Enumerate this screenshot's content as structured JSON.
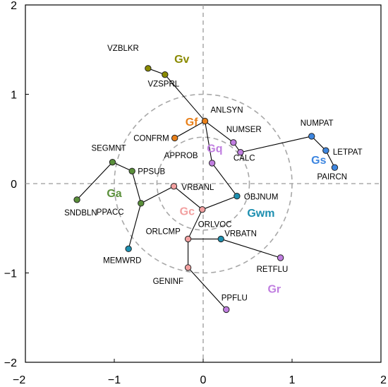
{
  "chart_data": {
    "type": "scatter",
    "xlim": [
      -2,
      2
    ],
    "ylim": [
      -2,
      2
    ],
    "x_ticks": [
      "−2",
      "−1",
      "0",
      "1",
      "2"
    ],
    "y_ticks": [
      "2",
      "1",
      "0",
      "−1",
      "−2"
    ],
    "grid": false,
    "reference_lines": [
      0,
      0
    ],
    "circles": [
      {
        "center": [
          0,
          0
        ],
        "radius": 1.0
      },
      {
        "center": [
          0,
          0
        ],
        "radius": 0.52
      }
    ],
    "colors": {
      "Gv": "#8a8a00",
      "Gf": "#e8801a",
      "Gq": "#c07ee0",
      "Gs": "#3d86e0",
      "Ga": "#5a8f3a",
      "Gc": "#f2a0a0",
      "Gwm": "#1d8fb0",
      "Gr": "#c07ee0"
    },
    "groups": [
      {
        "name": "Gv",
        "x": -0.24,
        "y": 1.35,
        "color_key": "Gv"
      },
      {
        "name": "Gf",
        "x": -0.13,
        "y": 0.65,
        "color_key": "Gf"
      },
      {
        "name": "Gq",
        "x": 0.13,
        "y": 0.35,
        "color_key": "Gq"
      },
      {
        "name": "Gs",
        "x": 1.3,
        "y": 0.22,
        "color_key": "Gs"
      },
      {
        "name": "Ga",
        "x": -1.0,
        "y": -0.15,
        "color_key": "Ga"
      },
      {
        "name": "Gc",
        "x": -0.18,
        "y": -0.35,
        "color_key": "Gc"
      },
      {
        "name": "Gwm",
        "x": 0.65,
        "y": -0.37,
        "color_key": "Gwm"
      },
      {
        "name": "Gr",
        "x": 0.8,
        "y": -1.22,
        "color_key": "Gr"
      }
    ],
    "points": [
      {
        "label": "VZBLKR",
        "x": -0.62,
        "y": 1.29,
        "color_key": "Gv"
      },
      {
        "label": "VZSPRL",
        "x": -0.43,
        "y": 1.22,
        "color_key": "Gv"
      },
      {
        "label": "ANLSYN",
        "x": 0.02,
        "y": 0.7,
        "color_key": "Gf"
      },
      {
        "name_hint": "",
        "label": "CONFRM",
        "x": -0.32,
        "y": 0.51,
        "color_key": "Gf"
      },
      {
        "label": "NUMSER",
        "x": 0.34,
        "y": 0.46,
        "color_key": "Gq"
      },
      {
        "label": "CALC",
        "x": 0.42,
        "y": 0.35,
        "color_key": "Gq"
      },
      {
        "label": "APPROB",
        "x": 0.1,
        "y": 0.23,
        "color_key": "Gq"
      },
      {
        "label": "NUMPAT",
        "x": 1.22,
        "y": 0.53,
        "color_key": "Gs"
      },
      {
        "label": "LETPAT",
        "x": 1.38,
        "y": 0.37,
        "color_key": "Gs"
      },
      {
        "label": "PAIRCN",
        "x": 1.48,
        "y": 0.18,
        "color_key": "Gs"
      },
      {
        "label": "SEGMNT",
        "x": -1.02,
        "y": 0.24,
        "color_key": "Ga"
      },
      {
        "label": "PPSUB",
        "x": -0.8,
        "y": 0.14,
        "color_key": "Ga"
      },
      {
        "label": "SNDBLN",
        "x": -1.42,
        "y": -0.18,
        "color_key": "Ga"
      },
      {
        "label": "PPACC",
        "x": -0.7,
        "y": -0.22,
        "color_key": "Ga"
      },
      {
        "label": "MEMWRD",
        "x": -0.84,
        "y": -0.73,
        "color_key": "Gwm"
      },
      {
        "label": "VRBANL",
        "x": -0.33,
        "y": -0.03,
        "color_key": "Gc"
      },
      {
        "label": "OBJNUM",
        "x": 0.38,
        "y": -0.14,
        "color_key": "Gwm"
      },
      {
        "label": "ORLVOC",
        "x": -0.01,
        "y": -0.29,
        "color_key": "Gc"
      },
      {
        "label": "ORLCMP",
        "x": -0.17,
        "y": -0.62,
        "color_key": "Gc"
      },
      {
        "label": "VRBATN",
        "x": 0.2,
        "y": -0.62,
        "color_key": "Gwm"
      },
      {
        "label": "RETFLU",
        "x": 0.87,
        "y": -0.83,
        "color_key": "Gr"
      },
      {
        "label": "GENINF",
        "x": -0.17,
        "y": -0.94,
        "color_key": "Gc"
      },
      {
        "label": "PPFLU",
        "x": 0.26,
        "y": -1.41,
        "color_key": "Gr"
      }
    ],
    "edges": [
      [
        "VZBLKR",
        "VZSPRL"
      ],
      [
        "VZSPRL",
        "ANLSYN"
      ],
      [
        "ANLSYN",
        "CONFRM"
      ],
      [
        "ANLSYN",
        "NUMSER"
      ],
      [
        "NUMSER",
        "CALC"
      ],
      [
        "CALC",
        "NUMPAT"
      ],
      [
        "NUMPAT",
        "LETPAT"
      ],
      [
        "LETPAT",
        "PAIRCN"
      ],
      [
        "ANLSYN",
        "APPROB"
      ],
      [
        "APPROB",
        "OBJNUM"
      ],
      [
        "OBJNUM",
        "ORLVOC"
      ],
      [
        "ORLVOC",
        "VRBANL"
      ],
      [
        "VRBANL",
        "PPACC"
      ],
      [
        "PPACC",
        "PPSUB"
      ],
      [
        "PPSUB",
        "SEGMNT"
      ],
      [
        "SEGMNT",
        "SNDBLN"
      ],
      [
        "PPACC",
        "MEMWRD"
      ],
      [
        "ORLVOC",
        "ORLCMP"
      ],
      [
        "ORLCMP",
        "VRBATN"
      ],
      [
        "VRBATN",
        "RETFLU"
      ],
      [
        "ORLCMP",
        "GENINF"
      ],
      [
        "GENINF",
        "PPFLU"
      ]
    ]
  }
}
